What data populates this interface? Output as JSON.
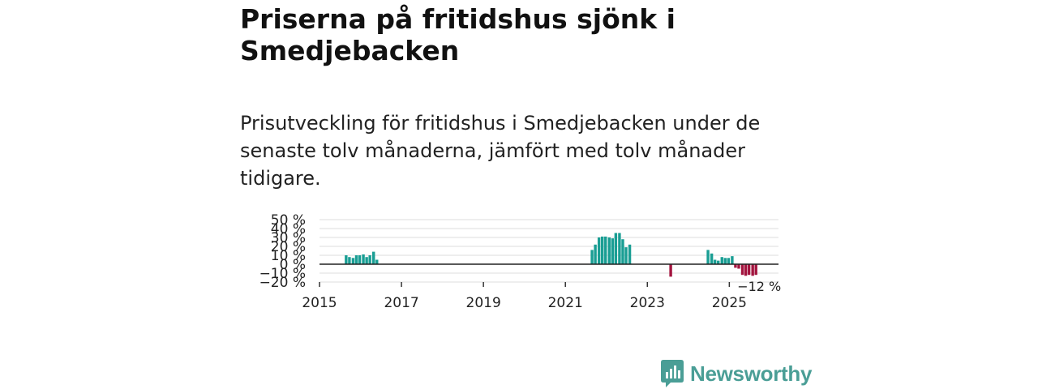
{
  "title": "Priserna på fritidshus sjönk i Smedjebacken",
  "subtitle": "Prisutveckling för fritidshus i Smedjebacken under de senaste tolv månaderna, jämfört med tolv månader tidigare.",
  "brand": {
    "name": "Newsworthy",
    "color": "#4a9e96"
  },
  "chart_data": {
    "type": "bar",
    "title": "Priserna på fritidshus sjönk i Smedjebacken",
    "xlabel": "",
    "ylabel": "",
    "ylim": [
      -20,
      50
    ],
    "xlim": [
      2015.0,
      2026.2
    ],
    "grid": true,
    "y_ticks": [
      50,
      40,
      30,
      20,
      10,
      0,
      -10,
      -20
    ],
    "y_tick_labels": [
      "50 %",
      "40 %",
      "30 %",
      "20 %",
      "10 %",
      "0 %",
      "−10 %",
      "−20 %"
    ],
    "x_ticks": [
      2015,
      2017,
      2019,
      2021,
      2023,
      2025
    ],
    "x_tick_labels": [
      "2015",
      "2017",
      "2019",
      "2021",
      "2023",
      "2025"
    ],
    "colors": {
      "positive": "#1a9e94",
      "negative": "#a3153f",
      "grid": "#dddddd",
      "zero_line": "#222222"
    },
    "series": [
      {
        "name": "Prisutveckling",
        "x": [
          2015.65,
          2015.73,
          2015.82,
          2015.9,
          2015.98,
          2016.07,
          2016.15,
          2016.23,
          2016.32,
          2016.4,
          2021.65,
          2021.73,
          2021.82,
          2021.9,
          2021.98,
          2022.07,
          2022.15,
          2022.23,
          2022.32,
          2022.4,
          2022.48,
          2022.57,
          2023.57,
          2024.48,
          2024.57,
          2024.65,
          2024.73,
          2024.82,
          2024.9,
          2024.98,
          2025.07,
          2025.15,
          2025.23,
          2025.32,
          2025.4,
          2025.48,
          2025.57,
          2025.65
        ],
        "values": [
          10,
          8,
          7,
          10,
          10,
          11,
          8,
          10,
          14,
          5,
          16,
          22,
          30,
          31,
          31,
          30,
          29,
          35,
          35,
          28,
          19,
          22,
          -14,
          16,
          12,
          5,
          4,
          8,
          7,
          7,
          9,
          -4,
          -5,
          -12,
          -13,
          -12,
          -13,
          -12
        ]
      }
    ],
    "annotation": {
      "text": "−12 %",
      "x": 2025.65,
      "y": -12
    }
  }
}
